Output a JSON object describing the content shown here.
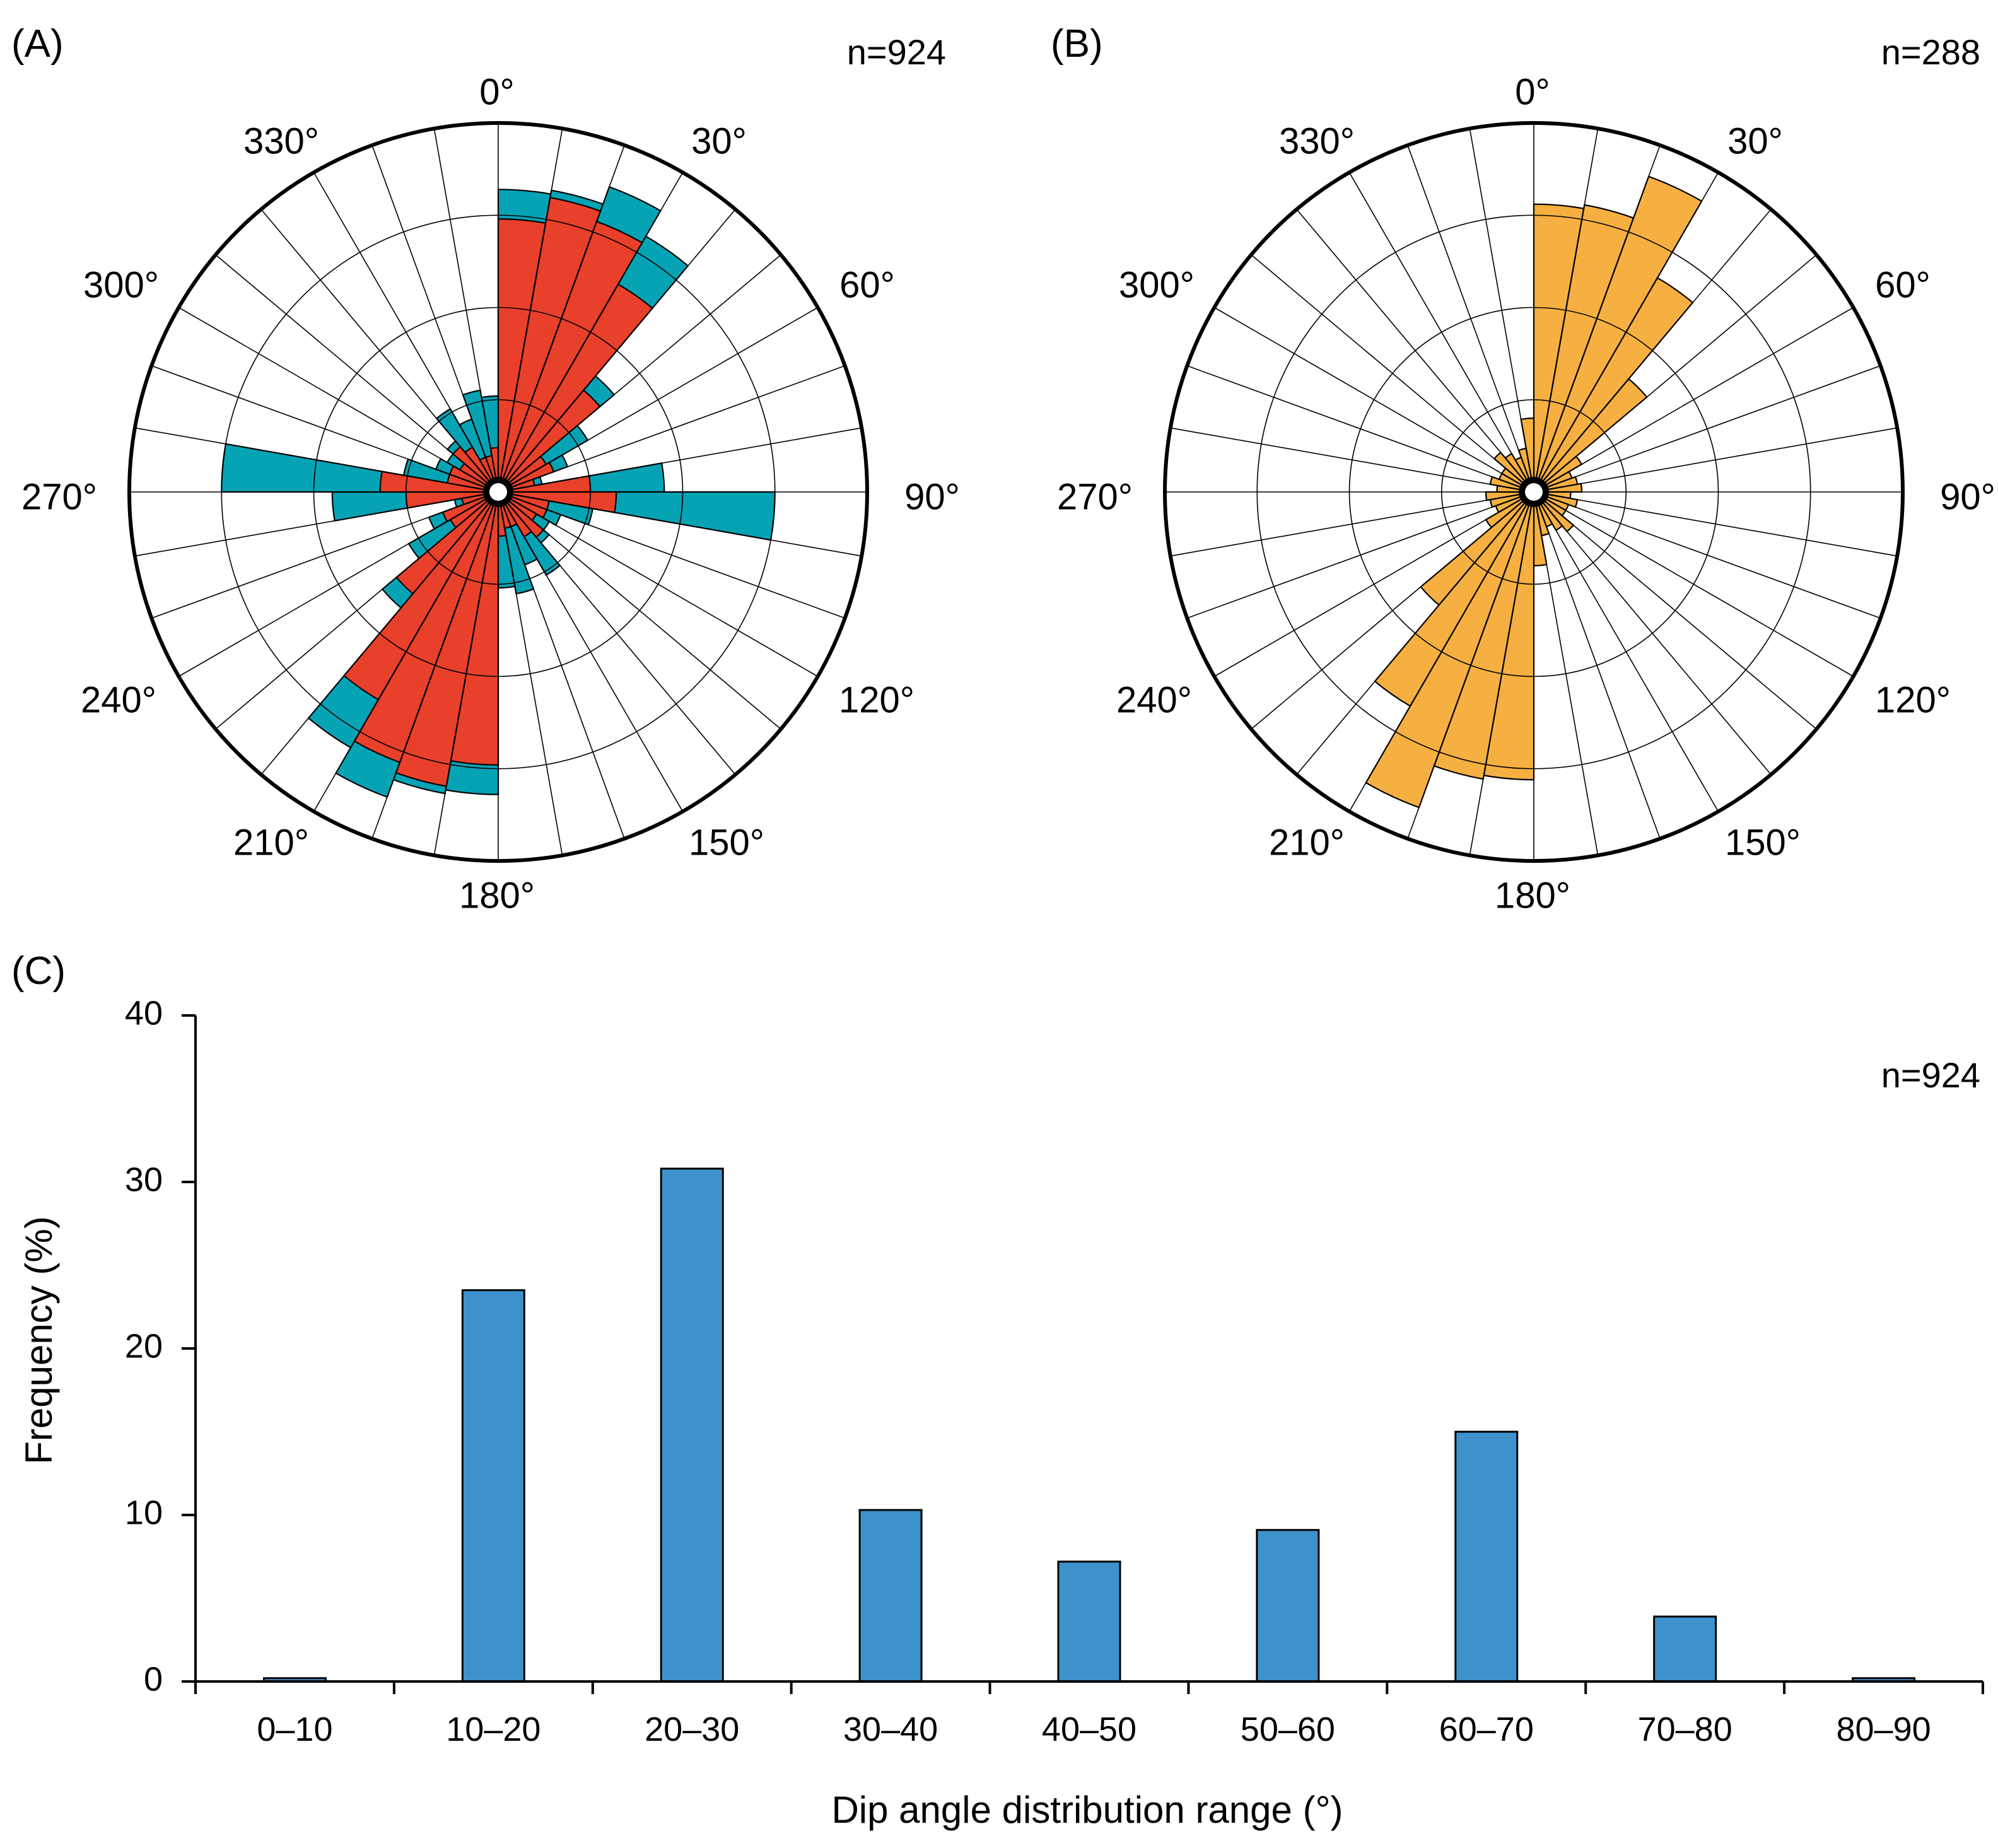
{
  "chart_data": [
    {
      "type": "rose",
      "panel": "(A)",
      "n_label": "n=924",
      "direction_labels": [
        "0°",
        "30°",
        "60°",
        "90°",
        "120°",
        "150°",
        "180°",
        "210°",
        "240°",
        "270°",
        "300°",
        "330°"
      ],
      "bin_width_deg": 10,
      "grid_circles": 3,
      "rmax": 1.0,
      "series": [
        {
          "name": "",
          "color": "#06A3B5",
          "values": [
            0.82,
            0.83,
            0.88,
            0.8,
            0.41,
            0.28,
            0.2,
            0.12,
            0.45,
            0.75,
            0.26,
            0.18,
            0.16,
            0.18,
            0.26,
            0.21,
            0.28,
            0.26,
            0.82,
            0.83,
            0.88,
            0.8,
            0.41,
            0.28,
            0.2,
            0.12,
            0.45,
            0.75,
            0.26,
            0.18,
            0.16,
            0.18,
            0.26,
            0.21,
            0.28,
            0.26
          ]
        },
        {
          "name": "",
          "color": "#E8402A",
          "values": [
            0.74,
            0.81,
            0.78,
            0.65,
            0.36,
            0.15,
            0.16,
            0.1,
            0.25,
            0.32,
            0.14,
            0.14,
            0.12,
            0.16,
            0.14,
            0.1,
            0.1,
            0.12,
            0.74,
            0.81,
            0.78,
            0.65,
            0.36,
            0.15,
            0.16,
            0.1,
            0.25,
            0.32,
            0.14,
            0.14,
            0.12,
            0.16,
            0.14,
            0.1,
            0.1,
            0.12
          ]
        }
      ]
    },
    {
      "type": "rose",
      "panel": "(B)",
      "n_label": "n=288",
      "direction_labels": [
        "0°",
        "30°",
        "60°",
        "90°",
        "120°",
        "150°",
        "180°",
        "210°",
        "240°",
        "270°",
        "300°",
        "330°"
      ],
      "bin_width_deg": 10,
      "grid_circles": 3,
      "rmax": 1.0,
      "series": [
        {
          "name": "",
          "color": "#F5B041",
          "values": [
            0.78,
            0.79,
            0.91,
            0.67,
            0.4,
            0.15,
            0.11,
            0.12,
            0.13,
            0.1,
            0.12,
            0.1,
            0.1,
            0.14,
            0.12,
            0.1,
            0.12,
            0.2,
            0.78,
            0.79,
            0.91,
            0.67,
            0.4,
            0.15,
            0.11,
            0.12,
            0.13,
            0.1,
            0.12,
            0.1,
            0.1,
            0.14,
            0.12,
            0.1,
            0.12,
            0.2
          ]
        }
      ]
    },
    {
      "type": "bar",
      "panel": "(C)",
      "n_label": "n=924",
      "categories": [
        "0–10",
        "10–20",
        "20–30",
        "30–40",
        "40–50",
        "50–60",
        "60–70",
        "70–80",
        "80–90"
      ],
      "values": [
        0.2,
        23.5,
        30.8,
        10.3,
        7.2,
        9.1,
        15.0,
        3.9,
        0.2
      ],
      "xlabel": "Dip angle distribution range (°)",
      "ylabel": "Frequency (%)",
      "ylim": [
        0,
        40
      ],
      "yticks": [
        "0",
        "10",
        "20",
        "30",
        "40"
      ],
      "color": "#3E92CC",
      "grid": false
    }
  ]
}
